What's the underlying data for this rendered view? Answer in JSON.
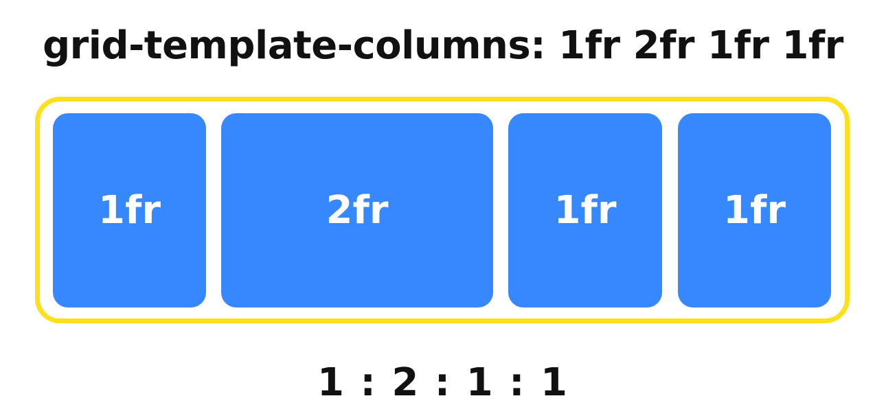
{
  "title": "grid-template-columns: 1fr 2fr 1fr 1fr",
  "grid": {
    "columns": [
      {
        "label": "1fr",
        "fraction": 1
      },
      {
        "label": "2fr",
        "fraction": 2
      },
      {
        "label": "1fr",
        "fraction": 1
      },
      {
        "label": "1fr",
        "fraction": 1
      }
    ]
  },
  "ratio": "1 : 2 : 1 : 1",
  "colors": {
    "container_border": "#ffe01f",
    "cell_fill": "#3787fe",
    "cell_text": "#ffffff",
    "text": "#111111",
    "background": "#ffffff"
  }
}
